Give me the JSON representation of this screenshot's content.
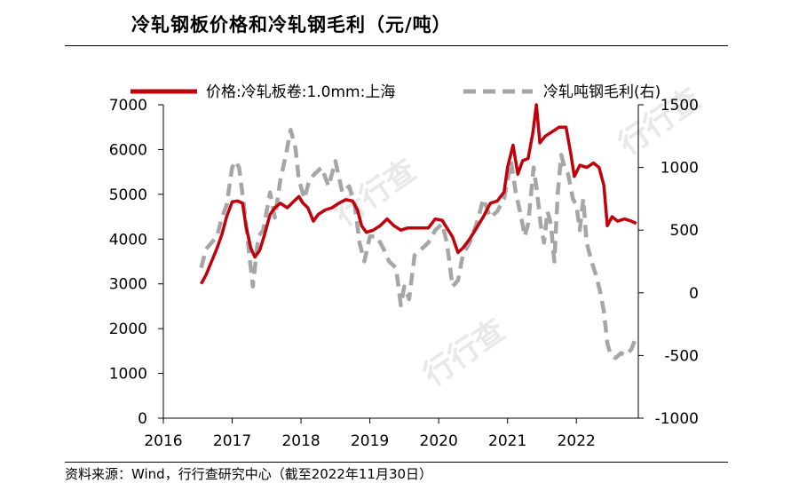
{
  "header": {
    "title": "冷轧钢板价格和冷轧钢毛利（元/吨）"
  },
  "watermark_text": "行行查",
  "chart_data": {
    "type": "line",
    "title": "冷轧钢板价格和冷轧钢毛利（元/吨）",
    "xlabel": "",
    "ylabel": "",
    "x_ticks": [
      "2016",
      "2017",
      "2018",
      "2019",
      "2020",
      "2021",
      "2022"
    ],
    "xlim": [
      2016,
      2022.9
    ],
    "ylim_left": [
      0,
      7000
    ],
    "ylim_right": [
      -1000,
      1500
    ],
    "yticks_left": [
      "0",
      "1000",
      "2000",
      "3000",
      "4000",
      "5000",
      "6000",
      "7000"
    ],
    "yticks_right": [
      "-1000",
      "-500",
      "0",
      "500",
      "1000",
      "1500"
    ],
    "legend_position": "top",
    "grid": false,
    "series": [
      {
        "name": "价格:冷轧板卷:1.0mm:上海",
        "axis": "left",
        "color": "#c0000a",
        "style": "solid",
        "points": [
          [
            2016.55,
            3000
          ],
          [
            2016.62,
            3200
          ],
          [
            2016.7,
            3500
          ],
          [
            2016.78,
            3800
          ],
          [
            2016.85,
            4100
          ],
          [
            2016.92,
            4500
          ],
          [
            2017.0,
            4830
          ],
          [
            2017.08,
            4850
          ],
          [
            2017.15,
            4800
          ],
          [
            2017.2,
            4300
          ],
          [
            2017.27,
            3800
          ],
          [
            2017.33,
            3600
          ],
          [
            2017.4,
            3750
          ],
          [
            2017.47,
            4100
          ],
          [
            2017.55,
            4550
          ],
          [
            2017.62,
            4700
          ],
          [
            2017.7,
            4800
          ],
          [
            2017.8,
            4700
          ],
          [
            2017.9,
            4850
          ],
          [
            2017.97,
            4950
          ],
          [
            2018.03,
            4800
          ],
          [
            2018.1,
            4700
          ],
          [
            2018.18,
            4400
          ],
          [
            2018.25,
            4550
          ],
          [
            2018.35,
            4650
          ],
          [
            2018.45,
            4700
          ],
          [
            2018.55,
            4800
          ],
          [
            2018.65,
            4880
          ],
          [
            2018.75,
            4850
          ],
          [
            2018.82,
            4650
          ],
          [
            2018.88,
            4300
          ],
          [
            2018.95,
            4150
          ],
          [
            2019.05,
            4200
          ],
          [
            2019.15,
            4300
          ],
          [
            2019.25,
            4450
          ],
          [
            2019.35,
            4300
          ],
          [
            2019.45,
            4200
          ],
          [
            2019.55,
            4250
          ],
          [
            2019.65,
            4250
          ],
          [
            2019.75,
            4250
          ],
          [
            2019.85,
            4250
          ],
          [
            2019.95,
            4450
          ],
          [
            2020.05,
            4420
          ],
          [
            2020.12,
            4250
          ],
          [
            2020.2,
            4050
          ],
          [
            2020.28,
            3700
          ],
          [
            2020.35,
            3800
          ],
          [
            2020.45,
            4000
          ],
          [
            2020.55,
            4250
          ],
          [
            2020.65,
            4500
          ],
          [
            2020.75,
            4800
          ],
          [
            2020.85,
            4850
          ],
          [
            2020.95,
            5050
          ],
          [
            2021.0,
            5600
          ],
          [
            2021.08,
            6100
          ],
          [
            2021.15,
            5450
          ],
          [
            2021.22,
            5750
          ],
          [
            2021.3,
            5800
          ],
          [
            2021.37,
            6400
          ],
          [
            2021.42,
            7000
          ],
          [
            2021.47,
            6150
          ],
          [
            2021.55,
            6300
          ],
          [
            2021.65,
            6400
          ],
          [
            2021.75,
            6500
          ],
          [
            2021.85,
            6500
          ],
          [
            2021.92,
            5900
          ],
          [
            2021.97,
            5400
          ],
          [
            2022.05,
            5650
          ],
          [
            2022.15,
            5600
          ],
          [
            2022.25,
            5700
          ],
          [
            2022.33,
            5600
          ],
          [
            2022.4,
            5200
          ],
          [
            2022.45,
            4300
          ],
          [
            2022.52,
            4500
          ],
          [
            2022.6,
            4400
          ],
          [
            2022.7,
            4450
          ],
          [
            2022.8,
            4400
          ],
          [
            2022.87,
            4350
          ]
        ]
      },
      {
        "name": "冷轧吨钢毛利(右)",
        "axis": "right",
        "color": "#a6a6a6",
        "style": "dashed",
        "points": [
          [
            2016.55,
            200
          ],
          [
            2016.62,
            350
          ],
          [
            2016.7,
            400
          ],
          [
            2016.78,
            450
          ],
          [
            2016.85,
            600
          ],
          [
            2016.92,
            700
          ],
          [
            2017.0,
            1000
          ],
          [
            2017.05,
            1050
          ],
          [
            2017.1,
            1000
          ],
          [
            2017.17,
            700
          ],
          [
            2017.25,
            300
          ],
          [
            2017.3,
            50
          ],
          [
            2017.38,
            450
          ],
          [
            2017.45,
            500
          ],
          [
            2017.55,
            800
          ],
          [
            2017.62,
            600
          ],
          [
            2017.7,
            900
          ],
          [
            2017.78,
            1100
          ],
          [
            2017.85,
            1300
          ],
          [
            2017.92,
            1150
          ],
          [
            2017.97,
            900
          ],
          [
            2018.05,
            750
          ],
          [
            2018.12,
            900
          ],
          [
            2018.2,
            950
          ],
          [
            2018.3,
            1000
          ],
          [
            2018.4,
            850
          ],
          [
            2018.5,
            1050
          ],
          [
            2018.6,
            800
          ],
          [
            2018.7,
            850
          ],
          [
            2018.78,
            700
          ],
          [
            2018.85,
            400
          ],
          [
            2018.92,
            250
          ],
          [
            2019.0,
            450
          ],
          [
            2019.1,
            450
          ],
          [
            2019.2,
            350
          ],
          [
            2019.28,
            250
          ],
          [
            2019.38,
            200
          ],
          [
            2019.45,
            -100
          ],
          [
            2019.5,
            50
          ],
          [
            2019.57,
            -50
          ],
          [
            2019.65,
            300
          ],
          [
            2019.75,
            350
          ],
          [
            2019.85,
            400
          ],
          [
            2019.95,
            500
          ],
          [
            2020.05,
            550
          ],
          [
            2020.12,
            400
          ],
          [
            2020.2,
            50
          ],
          [
            2020.28,
            100
          ],
          [
            2020.35,
            300
          ],
          [
            2020.45,
            400
          ],
          [
            2020.55,
            550
          ],
          [
            2020.65,
            750
          ],
          [
            2020.75,
            600
          ],
          [
            2020.85,
            650
          ],
          [
            2020.95,
            750
          ],
          [
            2021.05,
            1050
          ],
          [
            2021.12,
            800
          ],
          [
            2021.2,
            600
          ],
          [
            2021.25,
            450
          ],
          [
            2021.3,
            550
          ],
          [
            2021.38,
            1000
          ],
          [
            2021.43,
            800
          ],
          [
            2021.48,
            550
          ],
          [
            2021.53,
            400
          ],
          [
            2021.58,
            650
          ],
          [
            2021.63,
            550
          ],
          [
            2021.68,
            250
          ],
          [
            2021.73,
            800
          ],
          [
            2021.78,
            1100
          ],
          [
            2021.83,
            1000
          ],
          [
            2021.88,
            950
          ],
          [
            2021.95,
            750
          ],
          [
            2022.0,
            700
          ],
          [
            2022.05,
            500
          ],
          [
            2022.1,
            750
          ],
          [
            2022.15,
            400
          ],
          [
            2022.22,
            250
          ],
          [
            2022.28,
            150
          ],
          [
            2022.35,
            0
          ],
          [
            2022.4,
            -150
          ],
          [
            2022.45,
            -400
          ],
          [
            2022.5,
            -500
          ],
          [
            2022.57,
            -520
          ],
          [
            2022.65,
            -480
          ],
          [
            2022.72,
            -500
          ],
          [
            2022.8,
            -450
          ],
          [
            2022.87,
            -350
          ]
        ]
      }
    ]
  },
  "footer": {
    "source": "资料来源：Wind，行行查研究中心（截至2022年11月30日）"
  }
}
